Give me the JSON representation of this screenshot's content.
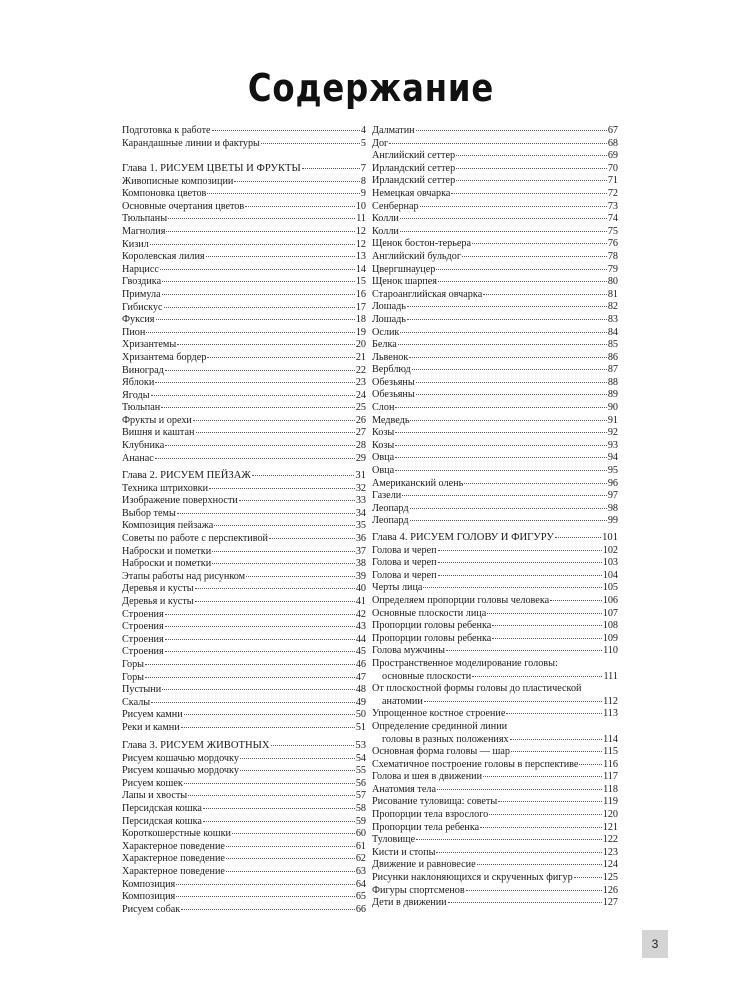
{
  "title": "Содержание",
  "page_number": "3",
  "left_column": [
    {
      "entries": [
        {
          "text": "Подготовка к работе",
          "page": "4"
        },
        {
          "text": "Карандашные линии и фактуры",
          "page": "5"
        }
      ]
    },
    {
      "entries": [
        {
          "text": "Глава 1. РИСУЕМ ЦВЕТЫ И ФРУКТЫ",
          "page": "7",
          "chapter": true
        },
        {
          "text": "Живописные композиции",
          "page": "8"
        },
        {
          "text": "Компоновка цветов",
          "page": "9"
        },
        {
          "text": "Основные очертания цветов",
          "page": "10"
        },
        {
          "text": "Тюльпаны",
          "page": "11"
        },
        {
          "text": "Магнолия",
          "page": "12"
        },
        {
          "text": "Кизил",
          "page": "12"
        },
        {
          "text": "Королевская лилия",
          "page": "13"
        },
        {
          "text": "Нарцисс",
          "page": "14"
        },
        {
          "text": "Гвоздика",
          "page": "15"
        },
        {
          "text": "Примула",
          "page": "16"
        },
        {
          "text": "Гибискус",
          "page": "17"
        },
        {
          "text": "Фуксия",
          "page": "18"
        },
        {
          "text": "Пион",
          "page": "19"
        },
        {
          "text": "Хризантемы",
          "page": "20"
        },
        {
          "text": "Хризантема бордер",
          "page": "21"
        },
        {
          "text": "Виноград",
          "page": "22"
        },
        {
          "text": "Яблоки",
          "page": "23"
        },
        {
          "text": "Ягоды",
          "page": "24"
        },
        {
          "text": "Тюльпан",
          "page": "25"
        },
        {
          "text": "Фрукты и орехи",
          "page": "26"
        },
        {
          "text": "Вишня и каштан",
          "page": "27"
        },
        {
          "text": "Клубника",
          "page": "28"
        },
        {
          "text": "Ананас",
          "page": "29"
        }
      ]
    },
    {
      "entries": [
        {
          "text": "Глава 2. РИСУЕМ ПЕЙЗАЖ",
          "page": "31",
          "chapter": true
        },
        {
          "text": "Техника штриховки",
          "page": "32"
        },
        {
          "text": "Изображение поверхности",
          "page": "33"
        },
        {
          "text": "Выбор темы",
          "page": "34"
        },
        {
          "text": "Композиция пейзажа",
          "page": "35"
        },
        {
          "text": "Советы по работе с перспективой",
          "page": "36"
        },
        {
          "text": "Наброски и пометки",
          "page": "37"
        },
        {
          "text": "Наброски и пометки",
          "page": "38"
        },
        {
          "text": "Этапы работы над рисунком",
          "page": "39"
        },
        {
          "text": "Деревья и кусты",
          "page": "40"
        },
        {
          "text": "Деревья и кусты",
          "page": "41"
        },
        {
          "text": "Строения",
          "page": "42"
        },
        {
          "text": "Строения",
          "page": "43"
        },
        {
          "text": "Строения",
          "page": "44"
        },
        {
          "text": "Строения",
          "page": "45"
        },
        {
          "text": "Горы",
          "page": "46"
        },
        {
          "text": "Горы",
          "page": "47"
        },
        {
          "text": "Пустыни",
          "page": "48"
        },
        {
          "text": "Скалы",
          "page": "49"
        },
        {
          "text": "Рисуем камни",
          "page": "50"
        },
        {
          "text": "Реки и камни",
          "page": "51"
        }
      ]
    },
    {
      "entries": [
        {
          "text": "Глава 3. РИСУЕМ ЖИВОТНЫХ",
          "page": "53",
          "chapter": true
        },
        {
          "text": "Рисуем кошачью мордочку",
          "page": "54"
        },
        {
          "text": "Рисуем кошачью мордочку",
          "page": "55"
        },
        {
          "text": "Рисуем кошек",
          "page": "56"
        },
        {
          "text": "Лапы и хвосты",
          "page": "57"
        },
        {
          "text": "Персидская кошка",
          "page": "58"
        },
        {
          "text": "Персидская кошка",
          "page": "59"
        },
        {
          "text": "Короткошерстные кошки",
          "page": "60"
        },
        {
          "text": "Характерное поведение",
          "page": "61"
        },
        {
          "text": "Характерное поведение",
          "page": "62"
        },
        {
          "text": "Характерное поведение",
          "page": "63"
        },
        {
          "text": "Композиция",
          "page": "64"
        },
        {
          "text": "Композиция",
          "page": "65"
        },
        {
          "text": "Рисуем собак",
          "page": "66"
        }
      ]
    }
  ],
  "right_column": [
    {
      "entries": [
        {
          "text": "Далматин",
          "page": "67"
        },
        {
          "text": "Дог",
          "page": "68"
        },
        {
          "text": "Английский сеттер",
          "page": "69"
        },
        {
          "text": "Ирландский сеттер",
          "page": "70"
        },
        {
          "text": "Ирландский сеттер",
          "page": "71"
        },
        {
          "text": "Немецкая овчарка",
          "page": "72"
        },
        {
          "text": "Сенбернар",
          "page": "73"
        },
        {
          "text": "Колли",
          "page": "74"
        },
        {
          "text": "Колли",
          "page": "75"
        },
        {
          "text": "Щенок бостон-терьера",
          "page": "76"
        },
        {
          "text": "Английский бульдог",
          "page": "78"
        },
        {
          "text": "Цвергшнауцер",
          "page": "79"
        },
        {
          "text": "Щенок шарпея",
          "page": "80"
        },
        {
          "text": "Староанглийская овчарка",
          "page": "81"
        },
        {
          "text": "Лошадь",
          "page": "82"
        },
        {
          "text": "Лошадь",
          "page": "83"
        },
        {
          "text": "Ослик",
          "page": "84"
        },
        {
          "text": "Белка",
          "page": "85"
        },
        {
          "text": "Львенок",
          "page": "86"
        },
        {
          "text": "Верблюд",
          "page": "87"
        },
        {
          "text": "Обезьяны",
          "page": "88"
        },
        {
          "text": "Обезьяны",
          "page": "89"
        },
        {
          "text": "Слон",
          "page": "90"
        },
        {
          "text": "Медведь",
          "page": "91"
        },
        {
          "text": "Козы",
          "page": "92"
        },
        {
          "text": "Козы",
          "page": "93"
        },
        {
          "text": "Овца",
          "page": "94"
        },
        {
          "text": "Овца",
          "page": "95"
        },
        {
          "text": "Американский олень",
          "page": "96"
        },
        {
          "text": "Газели",
          "page": "97"
        },
        {
          "text": "Леопард",
          "page": "98"
        },
        {
          "text": "Леопард",
          "page": "99"
        }
      ]
    },
    {
      "entries": [
        {
          "text": "Глава 4. РИСУЕМ ГОЛОВУ И ФИГУРУ",
          "page": "101",
          "chapter": true
        },
        {
          "text": "Голова и череп",
          "page": "102"
        },
        {
          "text": "Голова и череп",
          "page": "103"
        },
        {
          "text": "Голова и череп",
          "page": "104"
        },
        {
          "text": "Черты лица",
          "page": "105"
        },
        {
          "text": "Определяем пропорции головы человека",
          "page": "106"
        },
        {
          "text": "Основные плоскости лица",
          "page": "107"
        },
        {
          "text": "Пропорции головы ребенка",
          "page": "108"
        },
        {
          "text": "Пропорции головы ребенка",
          "page": "109"
        },
        {
          "text": "Голова мужчины",
          "page": "110"
        },
        {
          "text": "Пространственное моделирование головы:",
          "cont": "основные плоскости",
          "page": "111"
        },
        {
          "text": "От плоскостной формы головы до пластической",
          "cont": "анатомии",
          "page": "112"
        },
        {
          "text": "Упрощенное костное строение",
          "page": "113"
        },
        {
          "text": "Определение срединной линии",
          "cont": "головы в разных положениях",
          "page": "114"
        },
        {
          "text": "Основная форма головы — шар",
          "page": "115"
        },
        {
          "text": "Схематичное построение головы в перспективе",
          "page": "116"
        },
        {
          "text": "Голова и шея в движении",
          "page": "117"
        },
        {
          "text": "Анатомия тела",
          "page": "118"
        },
        {
          "text": "Рисование туловища: советы",
          "page": "119"
        },
        {
          "text": "Пропорции тела взрослого",
          "page": "120"
        },
        {
          "text": "Пропорции тела ребенка",
          "page": "121"
        },
        {
          "text": "Туловище",
          "page": "122"
        },
        {
          "text": "Кисти и стопы",
          "page": "123"
        },
        {
          "text": "Движение и равновесие",
          "page": "124"
        },
        {
          "text": "Рисунки наклоняющихся и скрученных фигур",
          "page": "125"
        },
        {
          "text": "Фигуры спортсменов",
          "page": "126"
        },
        {
          "text": "Дети в движении",
          "page": "127"
        }
      ]
    }
  ]
}
